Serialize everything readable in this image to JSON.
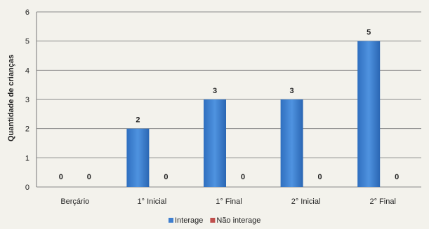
{
  "chart_data": {
    "type": "bar",
    "title": "",
    "xlabel": "",
    "ylabel": "Quantidade de crianças",
    "ylim": [
      0,
      6
    ],
    "yticks": [
      0,
      1,
      2,
      3,
      4,
      5,
      6
    ],
    "grid": true,
    "legend_position": "bottom",
    "categories": [
      "Berçário",
      "1° Inicial",
      "1° Final",
      "2° Inicial",
      "2° Final"
    ],
    "series": [
      {
        "name": "Interage",
        "values": [
          0,
          2,
          3,
          3,
          5
        ],
        "color": "#3f7fcf"
      },
      {
        "name": "Não interage",
        "values": [
          0,
          0,
          0,
          0,
          0
        ],
        "color": "#c0504d"
      }
    ]
  }
}
